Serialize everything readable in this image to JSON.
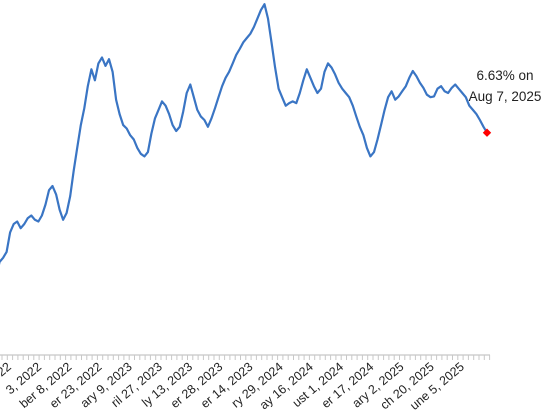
{
  "chart_data": {
    "type": "line",
    "title": "",
    "xlabel": "",
    "ylabel": "",
    "x_tick_labels": [
      "22",
      "3, 2022",
      "ber 8, 2022",
      "er 23, 2022",
      "ary 9, 2023",
      "ril 27, 2023",
      "ly 13, 2023",
      "er 28, 2023",
      "er 14, 2023",
      "ry 29, 2024",
      "ay 16, 2024",
      "ust 1, 2024",
      "er 17, 2024",
      "ary 2, 2025",
      "ch 20, 2025",
      "une 5, 2025"
    ],
    "ylim": [
      4.0,
      8.2
    ],
    "grid": false,
    "series": [
      {
        "color": "#3a75c4",
        "values": [
          4.9,
          5.1,
          5.15,
          5.22,
          5.45,
          5.55,
          5.58,
          5.5,
          5.55,
          5.62,
          5.65,
          5.6,
          5.58,
          5.65,
          5.78,
          5.95,
          6.0,
          5.9,
          5.72,
          5.6,
          5.68,
          5.88,
          6.18,
          6.45,
          6.72,
          6.92,
          7.18,
          7.38,
          7.25,
          7.45,
          7.52,
          7.42,
          7.5,
          7.35,
          7.02,
          6.85,
          6.72,
          6.68,
          6.6,
          6.55,
          6.45,
          6.38,
          6.35,
          6.4,
          6.62,
          6.8,
          6.9,
          7.0,
          6.95,
          6.85,
          6.72,
          6.65,
          6.7,
          6.88,
          7.1,
          7.2,
          7.05,
          6.9,
          6.82,
          6.78,
          6.7,
          6.8,
          6.92,
          7.05,
          7.18,
          7.28,
          7.35,
          7.45,
          7.55,
          7.62,
          7.7,
          7.75,
          7.8,
          7.88,
          7.98,
          8.08,
          8.15,
          7.98,
          7.7,
          7.4,
          7.15,
          7.05,
          6.95,
          6.98,
          7.0,
          6.98,
          7.1,
          7.25,
          7.38,
          7.28,
          7.18,
          7.1,
          7.15,
          7.35,
          7.45,
          7.4,
          7.32,
          7.22,
          7.15,
          7.1,
          7.05,
          6.95,
          6.82,
          6.7,
          6.6,
          6.45,
          6.35,
          6.4,
          6.55,
          6.72,
          6.9,
          7.05,
          7.12,
          7.02,
          7.06,
          7.12,
          7.18,
          7.28,
          7.36,
          7.3,
          7.22,
          7.16,
          7.08,
          7.05,
          7.06,
          7.15,
          7.18,
          7.12,
          7.1,
          7.16,
          7.2,
          7.15,
          7.1,
          7.05,
          6.95,
          6.9,
          6.85,
          6.78,
          6.7,
          6.63
        ]
      }
    ],
    "last_point": {
      "value": 6.63,
      "color": "#ff0000",
      "label_line1": "6.63% on",
      "label_line2": "Aug 7, 2025"
    },
    "axis_color": "#c8c8c8"
  }
}
